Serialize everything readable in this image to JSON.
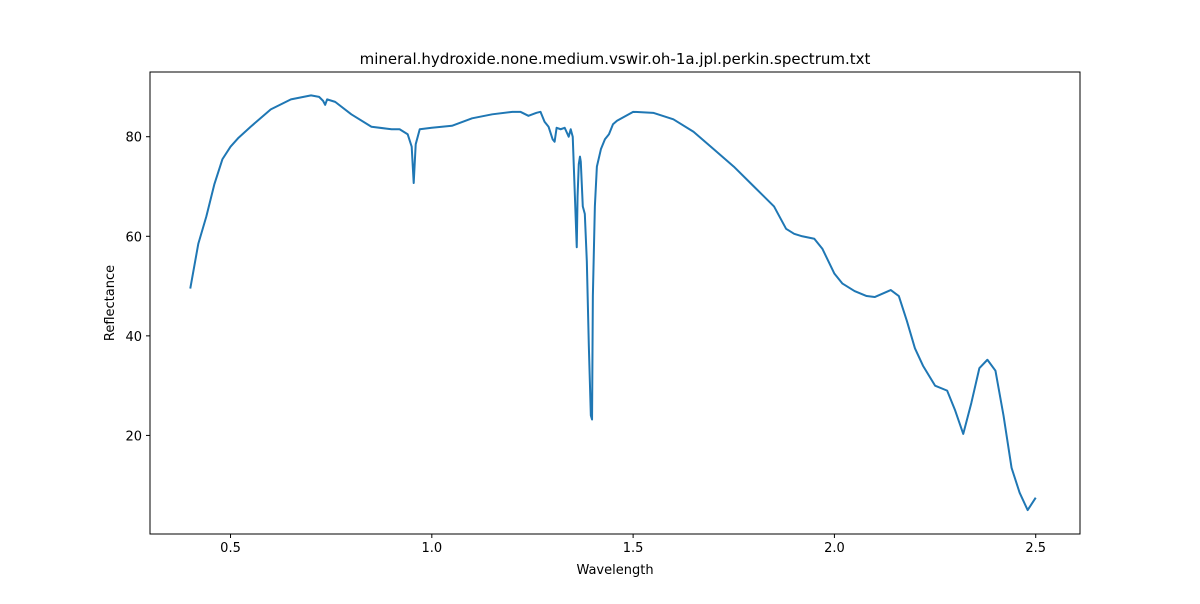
{
  "chart_data": {
    "type": "line",
    "title": "mineral.hydroxide.none.medium.vswir.oh-1a.jpl.perkin.spectrum.txt",
    "xlabel": "Wavelength",
    "ylabel": "Reflectance",
    "xlim": [
      0.3,
      2.61
    ],
    "ylim": [
      0.2,
      93.0
    ],
    "xticks": [
      0.5,
      1.0,
      1.5,
      2.0,
      2.5
    ],
    "xtick_labels": [
      "0.5",
      "1.0",
      "1.5",
      "2.0",
      "2.5"
    ],
    "yticks": [
      20,
      40,
      60,
      80
    ],
    "ytick_labels": [
      "20",
      "40",
      "60",
      "80"
    ],
    "grid": false,
    "series_color": "#1f77b4",
    "series": [
      {
        "x": [
          0.4,
          0.42,
          0.44,
          0.46,
          0.48,
          0.5,
          0.52,
          0.55,
          0.6,
          0.65,
          0.7,
          0.72,
          0.73,
          0.735,
          0.74,
          0.76,
          0.8,
          0.85,
          0.9,
          0.92,
          0.93,
          0.94,
          0.95,
          0.955,
          0.96,
          0.97,
          1.0,
          1.05,
          1.1,
          1.15,
          1.2,
          1.22,
          1.24,
          1.26,
          1.27,
          1.28,
          1.29,
          1.3,
          1.305,
          1.31,
          1.32,
          1.33,
          1.34,
          1.345,
          1.35,
          1.36,
          1.362,
          1.365,
          1.368,
          1.37,
          1.375,
          1.38,
          1.385,
          1.39,
          1.395,
          1.398,
          1.4,
          1.405,
          1.41,
          1.42,
          1.43,
          1.44,
          1.45,
          1.46,
          1.5,
          1.55,
          1.6,
          1.65,
          1.7,
          1.75,
          1.8,
          1.85,
          1.88,
          1.9,
          1.92,
          1.95,
          1.97,
          2.0,
          2.02,
          2.05,
          2.08,
          2.1,
          2.12,
          2.14,
          2.16,
          2.18,
          2.2,
          2.22,
          2.25,
          2.28,
          2.3,
          2.32,
          2.34,
          2.36,
          2.38,
          2.4,
          2.42,
          2.44,
          2.46,
          2.48,
          2.5
        ],
        "y": [
          49.5,
          58.5,
          64.0,
          70.5,
          75.5,
          78.0,
          79.8,
          82.0,
          85.5,
          87.5,
          88.3,
          88.0,
          87.2,
          86.4,
          87.5,
          87.0,
          84.5,
          82.0,
          81.5,
          81.5,
          81.0,
          80.5,
          78.0,
          70.7,
          78.5,
          81.5,
          81.8,
          82.2,
          83.7,
          84.5,
          85.0,
          85.0,
          84.2,
          84.8,
          85.0,
          83.0,
          82.0,
          79.5,
          79.0,
          81.8,
          81.5,
          81.8,
          80.0,
          81.5,
          80.0,
          57.8,
          68.0,
          74.5,
          76.0,
          75.0,
          66.0,
          64.5,
          55.0,
          38.0,
          24.0,
          23.2,
          48.0,
          66.0,
          74.0,
          77.5,
          79.5,
          80.5,
          82.5,
          83.2,
          85.0,
          84.8,
          83.5,
          81.0,
          77.5,
          74.0,
          70.0,
          66.0,
          61.5,
          60.5,
          60.0,
          59.5,
          57.5,
          52.5,
          50.5,
          49.0,
          48.0,
          47.8,
          48.5,
          49.2,
          48.0,
          43.0,
          37.5,
          34.0,
          30.0,
          29.0,
          25.0,
          20.3,
          26.5,
          33.5,
          35.2,
          33.0,
          24.0,
          13.5,
          8.5,
          5.0,
          7.5
        ]
      }
    ]
  }
}
